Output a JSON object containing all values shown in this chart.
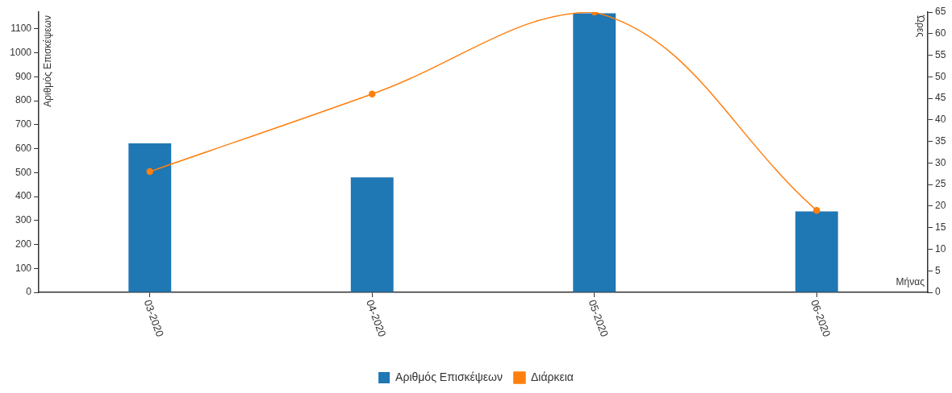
{
  "chart_data": {
    "type": "bar",
    "xlabel": "Μήνας",
    "ylabel": "Αριθμός Επισκέψεων",
    "y2label": "Ώρες",
    "categories": [
      "03-2020",
      "04-2020",
      "05-2020",
      "06-2020"
    ],
    "series": [
      {
        "name": "Αριθμός Επισκέψεων",
        "color": "#1f77b4",
        "values": [
          622,
          480,
          1165,
          338
        ]
      },
      {
        "name": "Διάρκεια",
        "type": "line",
        "axis": "y2",
        "color": "#ff7f0e",
        "marker": "circle",
        "values": [
          28,
          46,
          65,
          19
        ]
      }
    ],
    "ylim": [
      0,
      1170
    ],
    "yticks": [
      0,
      100,
      200,
      300,
      400,
      500,
      600,
      700,
      800,
      900,
      1000,
      1100
    ],
    "y2lim": [
      0,
      65
    ],
    "y2ticks": [
      0,
      5,
      10,
      15,
      20,
      25,
      30,
      35,
      40,
      45,
      50,
      55,
      60,
      65
    ],
    "grid": false,
    "legend": "bottom"
  }
}
